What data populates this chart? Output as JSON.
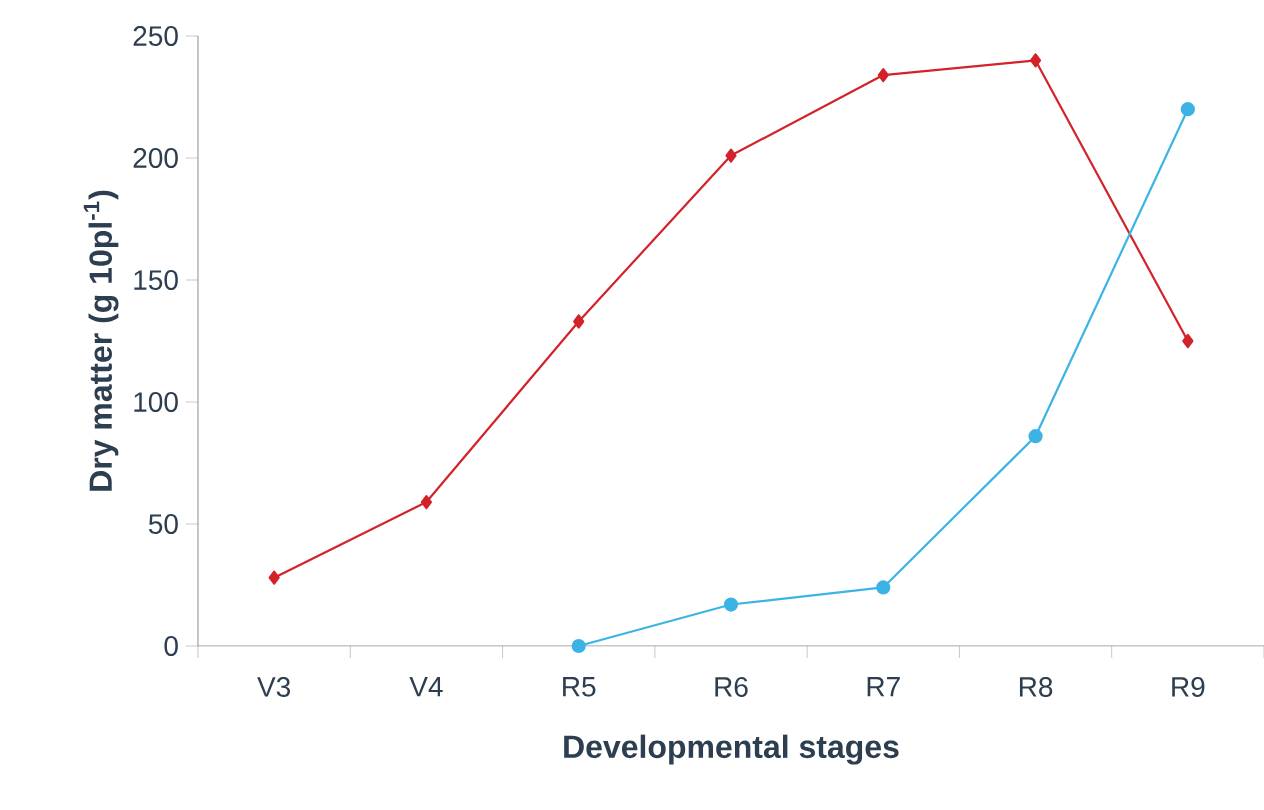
{
  "chart_data": {
    "type": "line",
    "xlabel": "Developmental stages",
    "ylabel": "Dry matter (g 10pl$^{-1}$)",
    "categories": [
      "V3",
      "V4",
      "R5",
      "R6",
      "R7",
      "R8",
      "R9"
    ],
    "ylim": [
      0,
      250
    ],
    "yticks": [
      0,
      50,
      100,
      150,
      200,
      250
    ],
    "line_style": "solid",
    "series": [
      {
        "color": "#d2232a",
        "marker": "diamond",
        "values": [
          28,
          59,
          133,
          201,
          234,
          240,
          125
        ]
      },
      {
        "color": "#3bb4e5",
        "marker": "circle",
        "values": [
          null,
          null,
          0,
          17,
          24,
          86,
          220
        ]
      }
    ]
  }
}
